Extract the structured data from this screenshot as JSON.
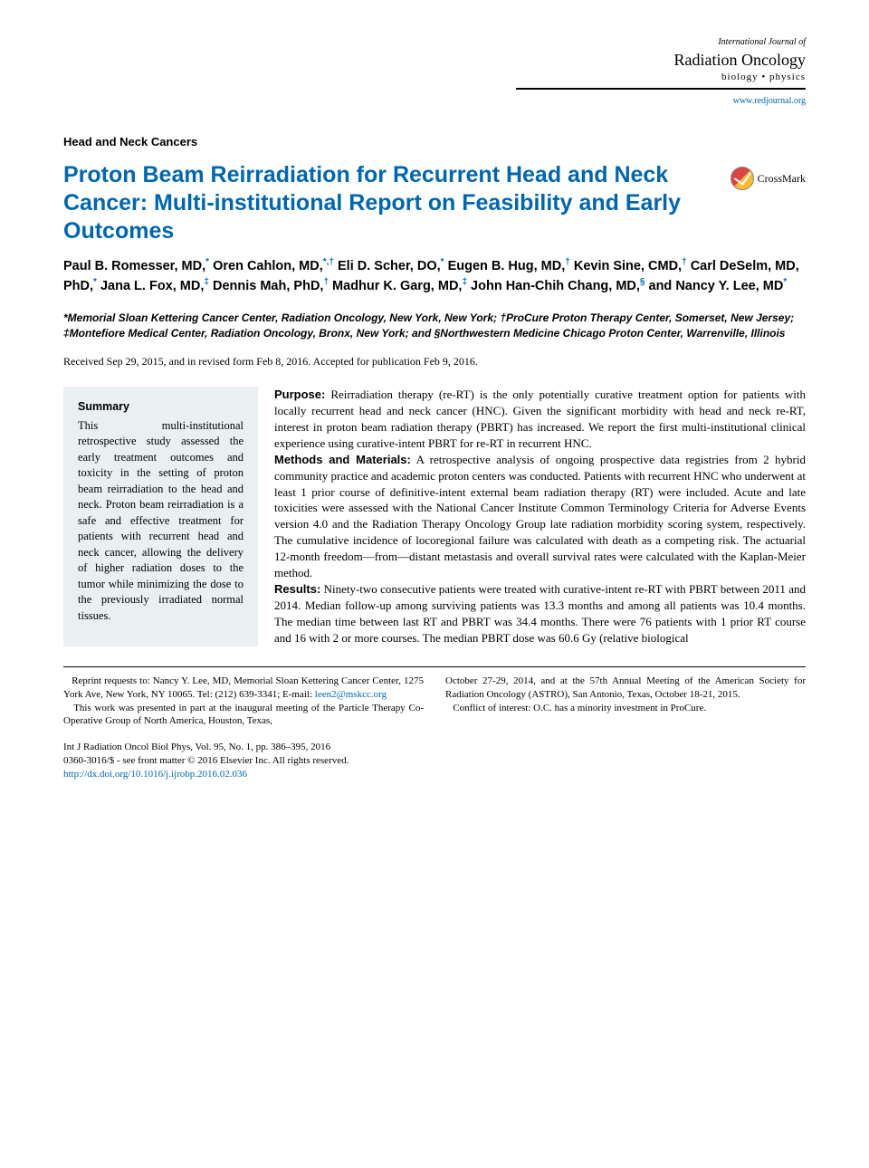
{
  "journal": {
    "small": "International Journal of",
    "large": "Radiation Oncology",
    "sub": "biology • physics",
    "url": "www.redjournal.org"
  },
  "section_label": "Head and Neck Cancers",
  "title": "Proton Beam Reirradiation for Recurrent Head and Neck Cancer: Multi-institutional Report on Feasibility and Early Outcomes",
  "crossmark_label": "CrossMark",
  "authors": [
    {
      "name": "Paul B. Romesser, MD,",
      "sup": "*"
    },
    {
      "name": "Oren Cahlon, MD,",
      "sup": "*,†"
    },
    {
      "name": "Eli D. Scher, DO,",
      "sup": "*"
    },
    {
      "name": "Eugen B. Hug, MD,",
      "sup": "†"
    },
    {
      "name": "Kevin Sine, CMD,",
      "sup": "†"
    },
    {
      "name": "Carl DeSelm, MD, PhD,",
      "sup": "*"
    },
    {
      "name": "Jana L. Fox, MD,",
      "sup": "‡"
    },
    {
      "name": "Dennis Mah, PhD,",
      "sup": "†"
    },
    {
      "name": "Madhur K. Garg, MD,",
      "sup": "‡"
    },
    {
      "name": "John Han-Chih Chang, MD,",
      "sup": "§"
    },
    {
      "name": "and Nancy Y. Lee, MD",
      "sup": "*"
    }
  ],
  "affiliations": "*Memorial Sloan Kettering Cancer Center, Radiation Oncology, New York, New York; †ProCure Proton Therapy Center, Somerset, New Jersey; ‡Montefiore Medical Center, Radiation Oncology, Bronx, New York; and §Northwestern Medicine Chicago Proton Center, Warrenville, Illinois",
  "dates": "Received Sep 29, 2015, and in revised form Feb 8, 2016. Accepted for publication Feb 9, 2016.",
  "summary": {
    "heading": "Summary",
    "text": "This multi-institutional retrospective study assessed the early treatment outcomes and toxicity in the setting of proton beam reirradiation to the head and neck. Proton beam reirradiation is a safe and effective treatment for patients with recurrent head and neck cancer, allowing the delivery of higher radiation doses to the tumor while minimizing the dose to the previously irradiated normal tissues."
  },
  "abstract": {
    "purpose_label": "Purpose:",
    "purpose": " Reirradiation therapy (re-RT) is the only potentially curative treatment option for patients with locally recurrent head and neck cancer (HNC). Given the significant morbidity with head and neck re-RT, interest in proton beam radiation therapy (PBRT) has increased. We report the first multi-institutional clinical experience using curative-intent PBRT for re-RT in recurrent HNC.",
    "methods_label": "Methods and Materials:",
    "methods": " A retrospective analysis of ongoing prospective data registries from 2 hybrid community practice and academic proton centers was conducted. Patients with recurrent HNC who underwent at least 1 prior course of definitive-intent external beam radiation therapy (RT) were included. Acute and late toxicities were assessed with the National Cancer Institute Common Terminology Criteria for Adverse Events version 4.0 and the Radiation Therapy Oncology Group late radiation morbidity scoring system, respectively. The cumulative incidence of locoregional failure was calculated with death as a competing risk. The actuarial 12-month freedom—from—distant metastasis and overall survival rates were calculated with the Kaplan-Meier method.",
    "results_label": "Results:",
    "results": " Ninety-two consecutive patients were treated with curative-intent re-RT with PBRT between 2011 and 2014. Median follow-up among surviving patients was 13.3 months and among all patients was 10.4 months. The median time between last RT and PBRT was 34.4 months. There were 76 patients with 1 prior RT course and 16 with 2 or more courses. The median PBRT dose was 60.6 Gy (relative biological"
  },
  "footnotes": {
    "left_1": "Reprint requests to: Nancy Y. Lee, MD, Memorial Sloan Kettering Cancer Center, 1275 York Ave, New York, NY 10065. Tel: (212) 639-3341; E-mail: ",
    "email": "leen2@mskcc.org",
    "left_2": "This work was presented in part at the inaugural meeting of the Particle Therapy Co-Operative Group of North America, Houston, Texas,",
    "right_1": "October 27-29, 2014, and at the 57th Annual Meeting of the American Society for Radiation Oncology (ASTRO), San Antonio, Texas, October 18-21, 2015.",
    "right_2": "Conflict of interest: O.C. has a minority investment in ProCure."
  },
  "citation": {
    "line1": "Int J Radiation Oncol Biol Phys, Vol. 95, No. 1, pp. 386–395, 2016",
    "line2": "0360-3016/$ - see front matter © 2016 Elsevier Inc. All rights reserved.",
    "doi": "http://dx.doi.org/10.1016/j.ijrobp.2016.02.036"
  }
}
